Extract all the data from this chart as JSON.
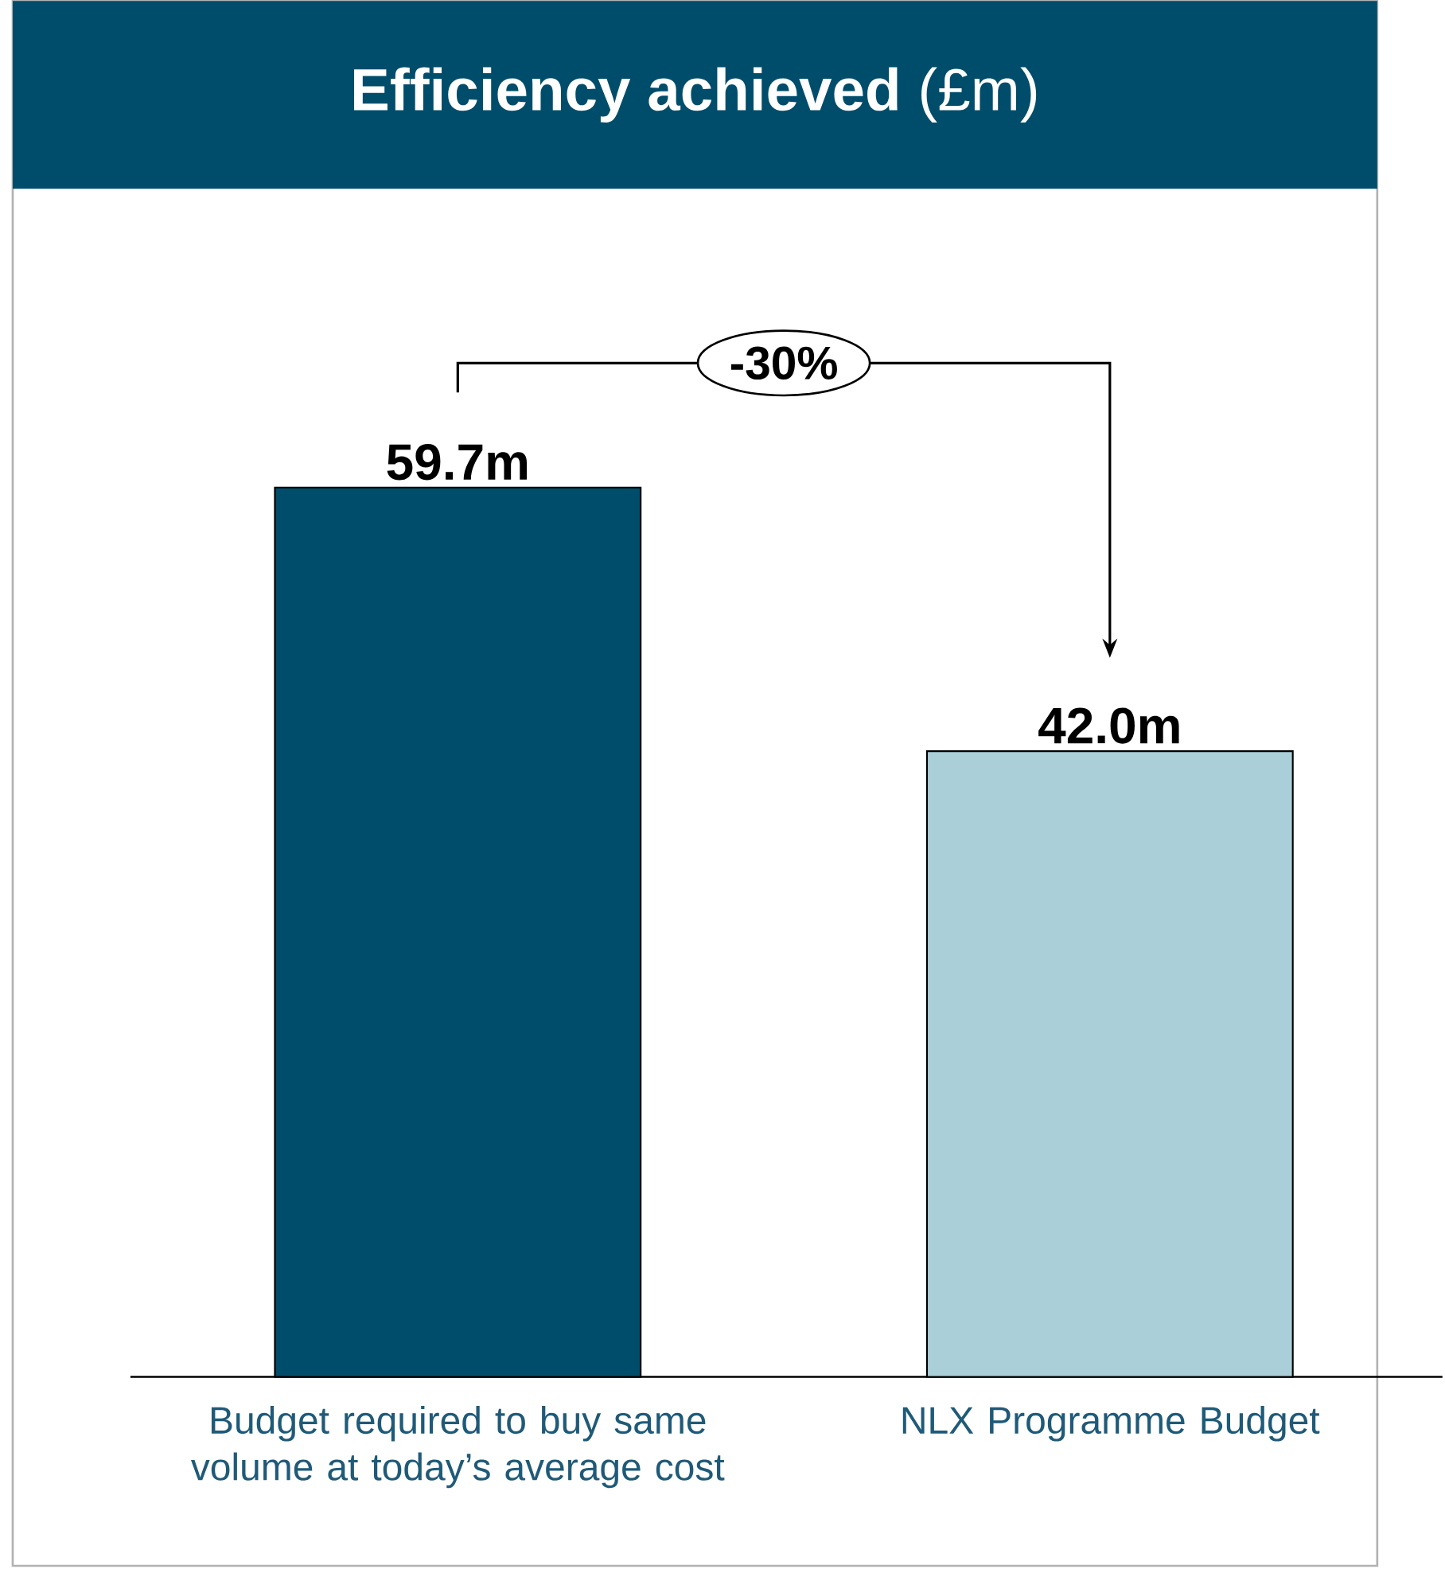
{
  "chart_data": {
    "type": "bar",
    "title": "**Efficiency achieved** (£m)",
    "categories": [
      "Budget required to buy same volume at today’s average cost",
      "NLX Programme Budget"
    ],
    "values": [
      59.7,
      42.0
    ],
    "colors": [
      "#004d6b",
      "#aacfd9"
    ],
    "value_labels": [
      "59.7m",
      "42.0m"
    ],
    "annotations": [
      "-30%"
    ],
    "tick_labels": "x"
  }
}
